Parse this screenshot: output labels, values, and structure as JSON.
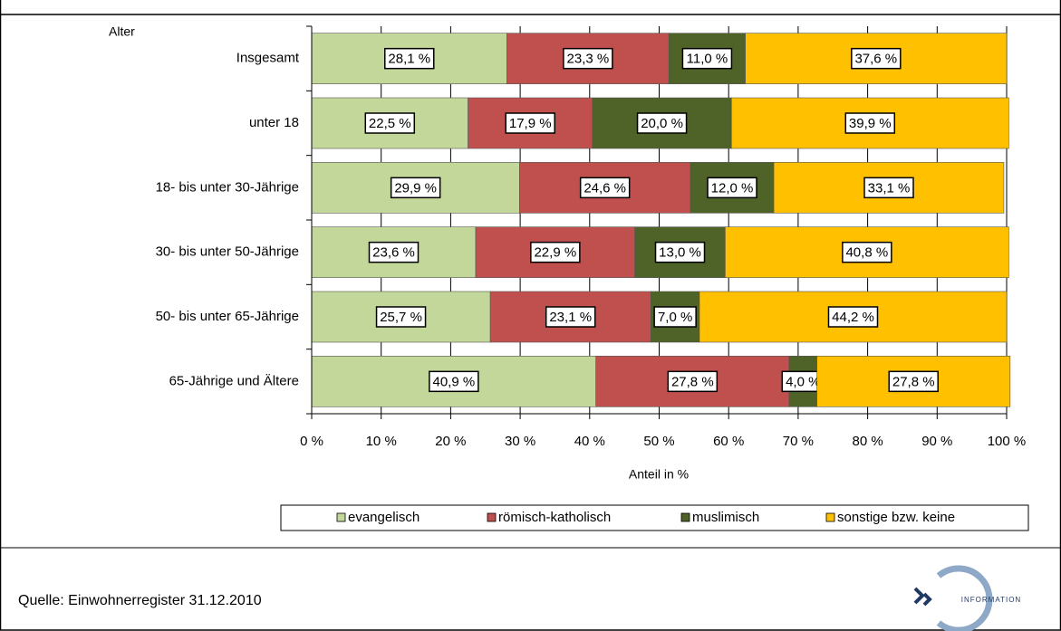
{
  "chart_data": {
    "type": "stacked-bar-horizontal",
    "category_axis_title": "Alter",
    "x_axis_title": "Anteil in %",
    "source": "Quelle: Einwohnerregister 31.12.2010",
    "logo_text": "INFORMATION",
    "categories": [
      "Insgesamt",
      "unter 18",
      "18- bis unter 30-Jährige",
      "30- bis unter 50-Jährige",
      "50- bis unter 65-Jährige",
      "65-Jährige und Ältere"
    ],
    "series": [
      {
        "name": "evangelisch",
        "color": "#c4d79b",
        "values": [
          28.1,
          22.5,
          29.9,
          23.6,
          25.7,
          40.9
        ],
        "value_labels": [
          "28,1 %",
          "22,5 %",
          "29,9 %",
          "23,6 %",
          "25,7 %",
          "40,9 %"
        ]
      },
      {
        "name": "römisch-katholisch",
        "color": "#c0504d",
        "values": [
          23.3,
          17.9,
          24.6,
          22.9,
          23.1,
          27.8
        ],
        "value_labels": [
          "23,3 %",
          "17,9 %",
          "24,6 %",
          "22,9 %",
          "23,1 %",
          "27,8 %"
        ]
      },
      {
        "name": "muslimisch",
        "color": "#4f6228",
        "values": [
          11.0,
          20.0,
          12.0,
          13.0,
          7.0,
          4.0
        ],
        "value_labels": [
          "11,0 %",
          "20,0 %",
          "12,0 %",
          "13,0 %",
          "7,0 %",
          "4,0 %"
        ]
      },
      {
        "name": "sonstige bzw. keine",
        "color": "#ffc000",
        "values": [
          37.6,
          39.9,
          33.1,
          40.8,
          44.2,
          27.8
        ],
        "value_labels": [
          "37,6 %",
          "39,9 %",
          "33,1 %",
          "40,8 %",
          "44,2 %",
          "27,8 %"
        ]
      }
    ],
    "xlim": [
      0,
      100
    ],
    "xticks": [
      {
        "value": 0,
        "label": "0 %"
      },
      {
        "value": 10,
        "label": "10 %"
      },
      {
        "value": 20,
        "label": "20 %"
      },
      {
        "value": 30,
        "label": "30 %"
      },
      {
        "value": 40,
        "label": "40 %"
      },
      {
        "value": 50,
        "label": "50 %"
      },
      {
        "value": 60,
        "label": "60 %"
      },
      {
        "value": 70,
        "label": "70 %"
      },
      {
        "value": 80,
        "label": "80 %"
      },
      {
        "value": 90,
        "label": "90 %"
      },
      {
        "value": 100,
        "label": "100 %"
      }
    ],
    "grid": true,
    "legend": "bottom"
  }
}
